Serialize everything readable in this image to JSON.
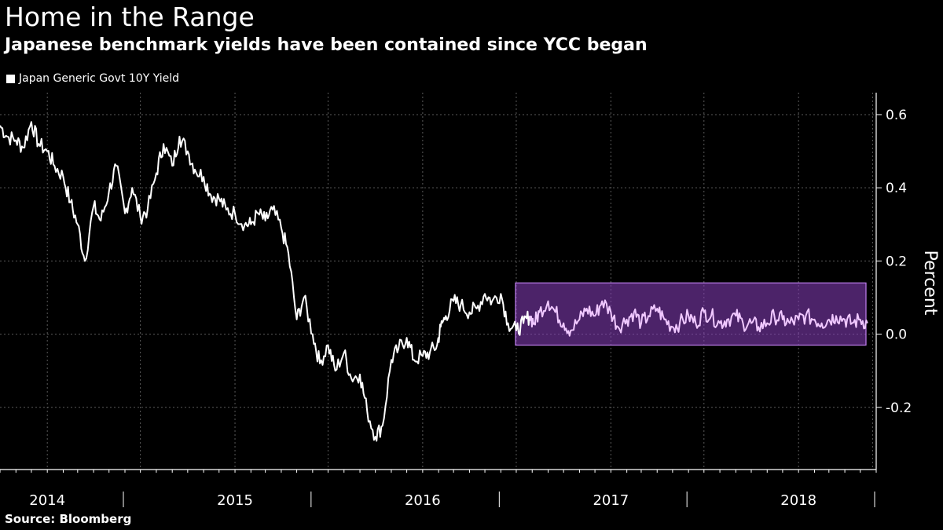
{
  "title": "Home in the Range",
  "subtitle": "Japanese benchmark yields have been contained since YCC began",
  "source": "Source: Bloomberg",
  "colors": {
    "background": "#000000",
    "line": "#ffffff",
    "highlight_fill": "#8a3fc0",
    "highlight_line": "#f0c8ff",
    "grid": "#5a5a5a"
  },
  "chart_data": {
    "type": "line",
    "title": "Home in the Range",
    "subtitle": "Japanese benchmark yields have been contained since YCC began",
    "xlabel": "",
    "ylabel": "Percent",
    "ylim": [
      -0.37,
      0.66
    ],
    "xlim": [
      "2013-10-01",
      "2018-06-01"
    ],
    "yticks": [
      -0.2,
      0.0,
      0.2,
      0.4,
      0.6
    ],
    "ytick_labels": [
      "-0.2",
      "0.0",
      "0.2",
      "0.4",
      "0.6"
    ],
    "xtick_labels": [
      "2014",
      "2015",
      "2016",
      "2017",
      "2018"
    ],
    "grid": true,
    "legend_position": "top-left",
    "series": [
      {
        "name": "Japan Generic Govt 10Y Yield",
        "x": [
          "2013-10-01",
          "2013-10-15",
          "2013-11-01",
          "2013-11-15",
          "2013-12-01",
          "2013-12-15",
          "2014-01-01",
          "2014-01-15",
          "2014-02-01",
          "2014-02-15",
          "2014-03-01",
          "2014-03-15",
          "2014-04-01",
          "2014-04-15",
          "2014-05-01",
          "2014-05-15",
          "2014-06-01",
          "2014-06-15",
          "2014-07-01",
          "2014-07-15",
          "2014-08-01",
          "2014-08-15",
          "2014-09-01",
          "2014-09-15",
          "2014-10-01",
          "2014-10-15",
          "2014-11-01",
          "2014-11-15",
          "2014-12-01",
          "2014-12-15",
          "2015-01-01",
          "2015-01-20",
          "2015-02-01",
          "2015-02-15",
          "2015-03-01",
          "2015-03-15",
          "2015-04-01",
          "2015-04-15",
          "2015-05-01",
          "2015-05-15",
          "2015-06-01",
          "2015-06-15",
          "2015-07-01",
          "2015-07-15",
          "2015-08-01",
          "2015-08-15",
          "2015-09-01",
          "2015-09-15",
          "2015-10-01",
          "2015-10-15",
          "2015-11-01",
          "2015-11-15",
          "2015-12-01",
          "2015-12-15",
          "2016-01-01",
          "2016-01-15",
          "2016-01-29",
          "2016-02-05",
          "2016-02-15",
          "2016-03-01",
          "2016-03-15",
          "2016-04-01",
          "2016-04-15",
          "2016-05-01",
          "2016-05-15",
          "2016-06-01",
          "2016-06-15",
          "2016-07-01",
          "2016-07-15",
          "2016-07-27",
          "2016-08-05",
          "2016-08-15",
          "2016-09-01",
          "2016-09-15",
          "2016-10-01",
          "2016-10-15",
          "2016-11-01",
          "2016-11-15",
          "2016-12-01",
          "2016-12-15",
          "2017-01-01",
          "2017-01-15",
          "2017-02-01",
          "2017-02-15",
          "2017-03-01",
          "2017-03-15",
          "2017-04-01",
          "2017-04-15",
          "2017-05-01",
          "2017-05-15",
          "2017-06-01",
          "2017-06-15",
          "2017-07-01",
          "2017-07-15",
          "2017-08-01",
          "2017-08-15",
          "2017-09-01",
          "2017-09-15",
          "2017-10-01",
          "2017-10-15",
          "2017-11-01",
          "2017-11-15",
          "2017-12-01",
          "2017-12-15",
          "2018-01-01",
          "2018-01-15",
          "2018-02-01",
          "2018-02-15",
          "2018-03-01",
          "2018-03-15",
          "2018-04-01",
          "2018-04-15",
          "2018-05-01",
          "2018-05-15"
        ],
        "values": [
          0.57,
          0.54,
          0.53,
          0.51,
          0.58,
          0.52,
          0.5,
          0.46,
          0.43,
          0.36,
          0.3,
          0.2,
          0.35,
          0.31,
          0.39,
          0.46,
          0.33,
          0.4,
          0.32,
          0.34,
          0.44,
          0.52,
          0.46,
          0.54,
          0.5,
          0.45,
          0.43,
          0.38,
          0.37,
          0.34,
          0.33,
          0.3,
          0.3,
          0.33,
          0.31,
          0.34,
          0.29,
          0.22,
          0.04,
          0.1,
          0.0,
          -0.08,
          -0.03,
          -0.1,
          -0.05,
          -0.12,
          -0.11,
          -0.21,
          -0.28,
          -0.25,
          -0.07,
          -0.04,
          -0.01,
          -0.07,
          -0.06,
          -0.05,
          -0.03,
          0.02,
          0.05,
          0.09,
          0.08,
          0.06,
          0.07,
          0.11,
          0.09,
          0.11,
          0.03,
          0.01,
          0.03,
          0.05,
          0.03,
          0.06,
          0.09,
          0.06,
          0.03,
          0.01,
          0.04,
          0.07,
          0.05,
          0.09,
          0.06,
          0.02,
          0.04,
          0.06,
          0.03,
          0.05,
          0.07,
          0.04,
          0.02,
          0.03,
          0.05,
          0.03,
          0.06,
          0.05,
          0.03,
          0.04,
          0.05,
          0.03,
          0.03,
          0.02,
          0.03,
          0.05,
          0.04,
          0.03,
          0.04,
          0.05,
          0.04,
          0.03,
          0.04,
          0.05,
          0.04,
          0.03,
          0.04,
          0.03
        ],
        "color": "#ffffff"
      }
    ],
    "annotations": [
      {
        "type": "highlight-box",
        "x_start": "2016-07-27",
        "x_end": "2018-06-01",
        "y_min": -0.03,
        "y_max": 0.14,
        "description": "YCC range"
      }
    ]
  }
}
